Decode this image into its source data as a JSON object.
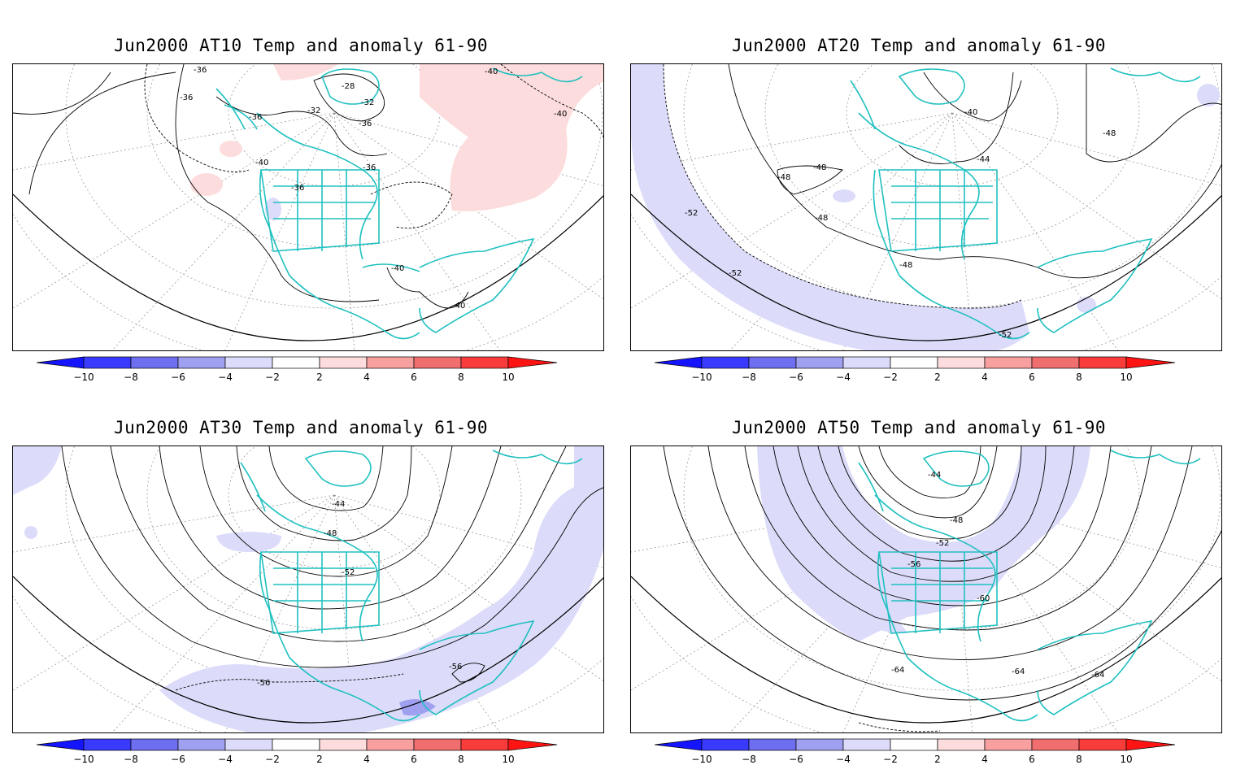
{
  "panels": [
    {
      "id": "at10",
      "title": "Jun2000 AT10 Temp and anomaly 61-90",
      "contour_labels": [
        "-36",
        "-36",
        "-28",
        "-32",
        "-32",
        "-36",
        "-36",
        "-40",
        "-36",
        "-36",
        "-40",
        "-40",
        "-40",
        "-40"
      ],
      "anomaly_color": "#fcdcdc"
    },
    {
      "id": "at20",
      "title": "Jun2000 AT20 Temp and anomaly 61-90",
      "contour_labels": [
        "-40",
        "-44",
        "-48",
        "-48",
        "-48",
        "-48",
        "-52",
        "-52",
        "-48",
        "-52"
      ],
      "anomaly_color": "#dcdcfa"
    },
    {
      "id": "at30",
      "title": "Jun2000 AT30 Temp and anomaly 61-90",
      "contour_labels": [
        "-44",
        "-48",
        "-52",
        "-56",
        "-56"
      ],
      "anomaly_color": "#dcdcfa"
    },
    {
      "id": "at50",
      "title": "Jun2000 AT50 Temp and anomaly 61-90",
      "contour_labels": [
        "-44",
        "-48",
        "-52",
        "-56",
        "-60",
        "-64",
        "-64",
        "-64"
      ],
      "anomaly_color": "#dcdcfa"
    }
  ],
  "colorbar": {
    "ticks": [
      "−10",
      "−8",
      "−6",
      "−4",
      "−2",
      "2",
      "4",
      "6",
      "8",
      "10"
    ],
    "colors": [
      "#1414ff",
      "#3a3aff",
      "#6e6ef0",
      "#a0a0f0",
      "#dcdcfa",
      "#ffffff",
      "#fcdcdc",
      "#f8a0a0",
      "#f06e6e",
      "#f83c3c",
      "#ff1414"
    ]
  },
  "styles": {
    "coast_color": "#20c0c0",
    "contour_color": "#000000",
    "grid_color": "#9a9a9a"
  }
}
